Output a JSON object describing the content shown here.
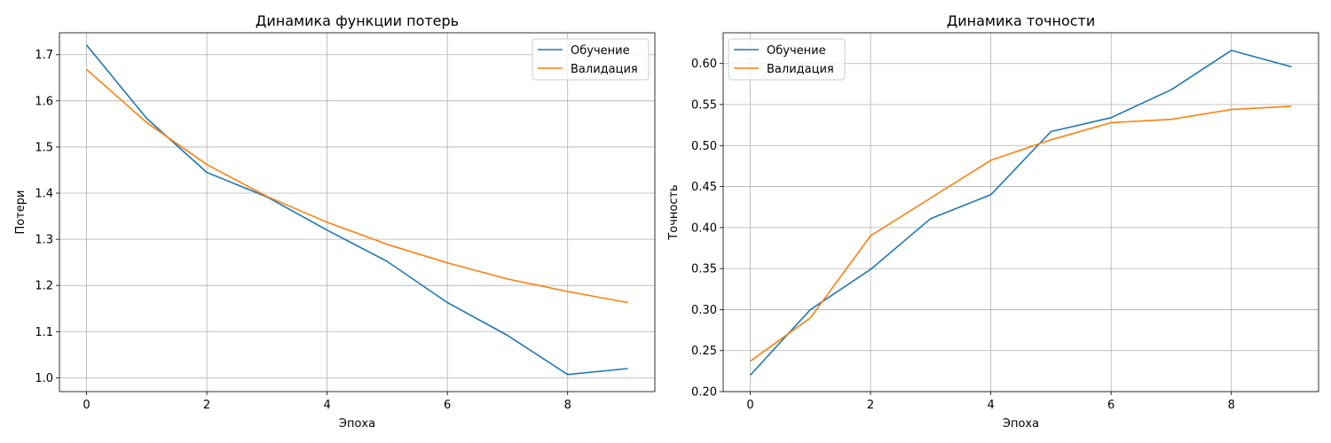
{
  "chart_data": [
    {
      "type": "line",
      "title": "Динамика функции потерь",
      "xlabel": "Эпоха",
      "ylabel": "Потери",
      "xlim": [
        -0.45,
        9.45
      ],
      "ylim": [
        0.97,
        1.7475
      ],
      "xticks": [
        0,
        2,
        4,
        6,
        8
      ],
      "yticks": [
        1.0,
        1.1,
        1.2,
        1.3,
        1.4,
        1.5,
        1.6,
        1.7
      ],
      "ytick_decimals": 1,
      "grid": true,
      "legend_position": "upper right",
      "x": [
        0,
        1,
        2,
        3,
        4,
        5,
        6,
        7,
        8,
        9
      ],
      "series": [
        {
          "name": "Обучение",
          "color": "#1f77b4",
          "values": [
            1.721,
            1.562,
            1.445,
            1.392,
            1.32,
            1.252,
            1.163,
            1.092,
            1.007,
            1.02
          ]
        },
        {
          "name": "Валидация",
          "color": "#ff7f0e",
          "values": [
            1.668,
            1.553,
            1.462,
            1.393,
            1.337,
            1.289,
            1.249,
            1.214,
            1.187,
            1.163
          ]
        }
      ]
    },
    {
      "type": "line",
      "title": "Динамика точности",
      "xlabel": "Эпоха",
      "ylabel": "Точность",
      "xlim": [
        -0.45,
        9.45
      ],
      "ylim": [
        0.2,
        0.6375
      ],
      "xticks": [
        0,
        2,
        4,
        6,
        8
      ],
      "yticks": [
        0.2,
        0.25,
        0.3,
        0.35,
        0.4,
        0.45,
        0.5,
        0.55,
        0.6
      ],
      "ytick_decimals": 2,
      "grid": true,
      "legend_position": "upper left",
      "x": [
        0,
        1,
        2,
        3,
        4,
        5,
        6,
        7,
        8,
        9
      ],
      "series": [
        {
          "name": "Обучение",
          "color": "#1f77b4",
          "values": [
            0.22,
            0.3,
            0.349,
            0.411,
            0.44,
            0.517,
            0.534,
            0.568,
            0.616,
            0.596
          ]
        },
        {
          "name": "Валидация",
          "color": "#ff7f0e",
          "values": [
            0.237,
            0.29,
            0.39,
            0.436,
            0.482,
            0.507,
            0.528,
            0.532,
            0.544,
            0.548
          ]
        }
      ]
    }
  ]
}
